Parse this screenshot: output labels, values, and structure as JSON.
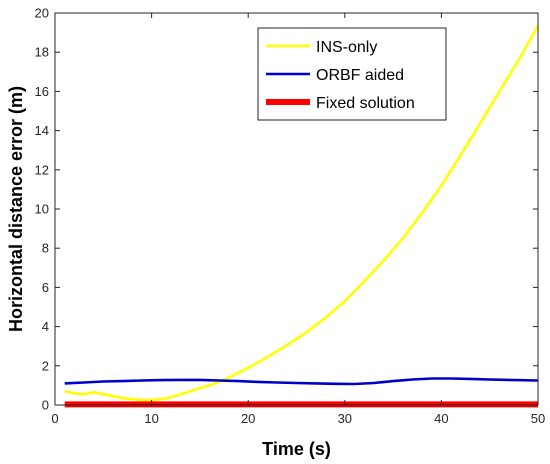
{
  "chart_data": {
    "type": "line",
    "xlabel": "Time (s)",
    "ylabel": "Horizontal distance error (m)",
    "xlim": [
      0,
      50
    ],
    "ylim": [
      0,
      20
    ],
    "xticks": [
      "0",
      "10",
      "20",
      "30",
      "40",
      "50"
    ],
    "yticks": [
      "0",
      "2",
      "4",
      "6",
      "8",
      "10",
      "12",
      "14",
      "16",
      "18",
      "20"
    ],
    "grid": false,
    "legend_position": "top-right",
    "series": [
      {
        "name": "INS-only",
        "color": "#FFFF00",
        "x": [
          1,
          2,
          3,
          4,
          5,
          6,
          7,
          8,
          9,
          10,
          11,
          12,
          13,
          14,
          15,
          16,
          17,
          18,
          19,
          20,
          22,
          24,
          26,
          28,
          30,
          32,
          34,
          36,
          38,
          40,
          42,
          44,
          46,
          48,
          50
        ],
        "y": [
          0.7,
          0.6,
          0.55,
          0.65,
          0.55,
          0.45,
          0.35,
          0.3,
          0.25,
          0.25,
          0.3,
          0.4,
          0.55,
          0.7,
          0.85,
          1.0,
          1.2,
          1.4,
          1.65,
          1.9,
          2.45,
          3.05,
          3.7,
          4.45,
          5.3,
          6.3,
          7.35,
          8.5,
          9.8,
          11.2,
          12.75,
          14.35,
          16.0,
          17.6,
          19.35
        ]
      },
      {
        "name": "ORBF aided",
        "color": "#0000CD",
        "x": [
          1,
          3,
          5,
          7,
          9,
          11,
          13,
          15,
          17,
          19,
          21,
          23,
          25,
          27,
          29,
          31,
          33,
          35,
          37,
          39,
          41,
          43,
          45,
          47,
          50
        ],
        "y": [
          1.1,
          1.15,
          1.2,
          1.22,
          1.25,
          1.27,
          1.28,
          1.28,
          1.25,
          1.22,
          1.18,
          1.15,
          1.12,
          1.1,
          1.08,
          1.07,
          1.12,
          1.22,
          1.3,
          1.35,
          1.35,
          1.33,
          1.3,
          1.28,
          1.25
        ]
      },
      {
        "name": "Fixed solution",
        "color": "#FF0000",
        "x": [
          1,
          50
        ],
        "y": [
          0.03,
          0.03
        ]
      }
    ]
  }
}
